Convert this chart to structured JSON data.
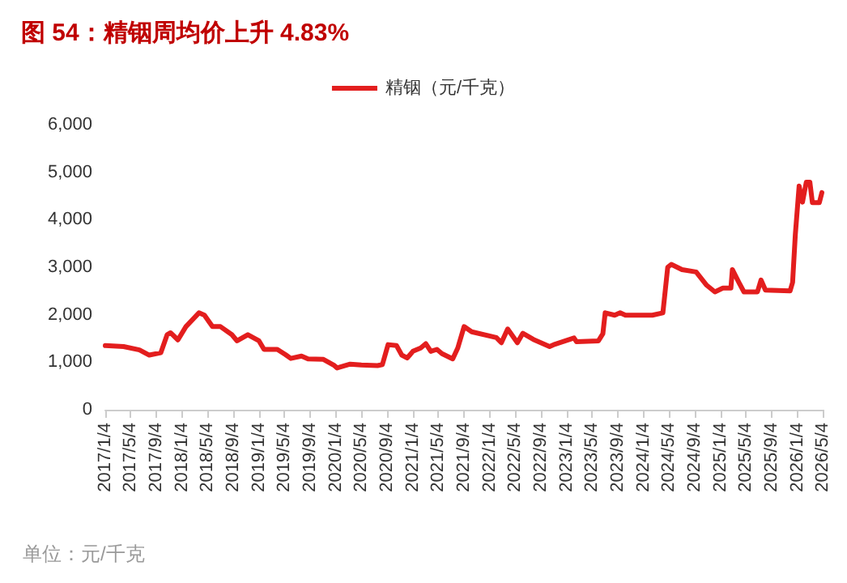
{
  "chart_data": {
    "type": "line",
    "title": "图 54：精铟周均价上升 4.83%",
    "annotations": [
      "单位：元/千克"
    ],
    "x": [
      "2017-01-04",
      "2017-04-01",
      "2017-06-15",
      "2017-08-01",
      "2017-09-25",
      "2017-10-25",
      "2017-11-10",
      "2017-12-15",
      "2018-01-22",
      "2018-03-25",
      "2018-04-20",
      "2018-05-28",
      "2018-07-05",
      "2018-08-28",
      "2018-09-22",
      "2018-11-12",
      "2019-01-04",
      "2019-01-28",
      "2019-04-01",
      "2019-05-10",
      "2019-06-04",
      "2019-07-25",
      "2019-08-25",
      "2019-11-06",
      "2019-12-28",
      "2020-01-10",
      "2020-03-12",
      "2020-05-04",
      "2020-07-20",
      "2020-08-12",
      "2020-09-08",
      "2020-10-18",
      "2020-11-12",
      "2020-12-08",
      "2021-01-04",
      "2021-02-10",
      "2021-03-06",
      "2021-03-30",
      "2021-04-28",
      "2021-05-22",
      "2021-07-12",
      "2021-08-05",
      "2021-09-04",
      "2021-10-10",
      "2022-02-04",
      "2022-02-28",
      "2022-03-30",
      "2022-05-15",
      "2022-06-10",
      "2022-07-30",
      "2022-10-15",
      "2022-11-10",
      "2023-02-08",
      "2023-02-20",
      "2023-06-04",
      "2023-06-25",
      "2023-07-06",
      "2023-08-20",
      "2023-09-15",
      "2023-10-10",
      "2024-02-15",
      "2024-04-05",
      "2024-04-28",
      "2024-05-15",
      "2024-07-05",
      "2024-09-10",
      "2024-10-30",
      "2024-12-08",
      "2025-01-15",
      "2025-02-22",
      "2025-03-01",
      "2025-04-01",
      "2025-04-25",
      "2025-06-28",
      "2025-07-15",
      "2025-08-05",
      "2025-11-30",
      "2025-12-12",
      "2025-12-25",
      "2026-01-12",
      "2026-01-28",
      "2026-02-15",
      "2026-03-04",
      "2026-03-16",
      "2026-04-18",
      "2026-04-30"
    ],
    "series": [
      {
        "name": "精铟（元/千克）",
        "color": "#e31e1e",
        "values": [
          1350,
          1330,
          1260,
          1150,
          1200,
          1580,
          1620,
          1470,
          1750,
          2040,
          1990,
          1750,
          1750,
          1580,
          1450,
          1580,
          1450,
          1270,
          1270,
          1160,
          1080,
          1130,
          1070,
          1060,
          930,
          880,
          960,
          940,
          930,
          950,
          1370,
          1350,
          1150,
          1090,
          1230,
          1300,
          1390,
          1230,
          1270,
          1180,
          1070,
          1300,
          1750,
          1640,
          1520,
          1410,
          1700,
          1410,
          1610,
          1480,
          1330,
          1380,
          1510,
          1430,
          1450,
          1600,
          2040,
          1990,
          2040,
          1990,
          1990,
          2040,
          3000,
          3060,
          2950,
          2900,
          2620,
          2480,
          2560,
          2560,
          2950,
          2680,
          2480,
          2480,
          2730,
          2520,
          2500,
          2680,
          3690,
          4710,
          4370,
          4790,
          4790,
          4360,
          4360,
          4570
        ]
      }
    ],
    "ylim": [
      0,
      6000
    ],
    "yticks": [
      0,
      {
        "value": 1000,
        "label": "1,000"
      },
      {
        "value": 2000,
        "label": "2,000"
      },
      {
        "value": 3000,
        "label": "3,000"
      },
      {
        "value": 4000,
        "label": "4,000"
      },
      {
        "value": 5000,
        "label": "5,000"
      },
      {
        "value": 6000,
        "label": "6,000"
      }
    ],
    "xlim": [
      "2017-01-04",
      "2026-05-04"
    ],
    "xticks": [
      {
        "value": "2017-01-04",
        "label": "2017/1/4"
      },
      {
        "value": "2017-05-04",
        "label": "2017/5/4"
      },
      {
        "value": "2017-09-04",
        "label": "2017/9/4"
      },
      {
        "value": "2018-01-04",
        "label": "2018/1/4"
      },
      {
        "value": "2018-05-04",
        "label": "2018/5/4"
      },
      {
        "value": "2018-09-04",
        "label": "2018/9/4"
      },
      {
        "value": "2019-01-04",
        "label": "2019/1/4"
      },
      {
        "value": "2019-05-04",
        "label": "2019/5/4"
      },
      {
        "value": "2019-09-04",
        "label": "2019/9/4"
      },
      {
        "value": "2020-01-04",
        "label": "2020/1/4"
      },
      {
        "value": "2020-05-04",
        "label": "2020/5/4"
      },
      {
        "value": "2020-09-04",
        "label": "2020/9/4"
      },
      {
        "value": "2021-01-04",
        "label": "2021/1/4"
      },
      {
        "value": "2021-05-04",
        "label": "2021/5/4"
      },
      {
        "value": "2021-09-04",
        "label": "2021/9/4"
      },
      {
        "value": "2022-01-04",
        "label": "2022/1/4"
      },
      {
        "value": "2022-05-04",
        "label": "2022/5/4"
      },
      {
        "value": "2022-09-04",
        "label": "2022/9/4"
      },
      {
        "value": "2023-01-04",
        "label": "2023/1/4"
      },
      {
        "value": "2023-05-04",
        "label": "2023/5/4"
      },
      {
        "value": "2023-09-04",
        "label": "2023/9/4"
      },
      {
        "value": "2024-01-04",
        "label": "2024/1/4"
      },
      {
        "value": "2024-05-04",
        "label": "2024/5/4"
      },
      {
        "value": "2024-09-04",
        "label": "2024/9/4"
      },
      {
        "value": "2025-01-04",
        "label": "2025/1/4"
      },
      {
        "value": "2025-05-04",
        "label": "2025/5/4"
      },
      {
        "value": "2025-09-04",
        "label": "2025/9/4"
      },
      {
        "value": "2026-01-04",
        "label": "2026/1/4"
      },
      {
        "value": "2026-05-04",
        "label": "2026/5/4"
      }
    ],
    "grid": false,
    "legend": "top",
    "marker": "none",
    "line_style": "solid"
  }
}
